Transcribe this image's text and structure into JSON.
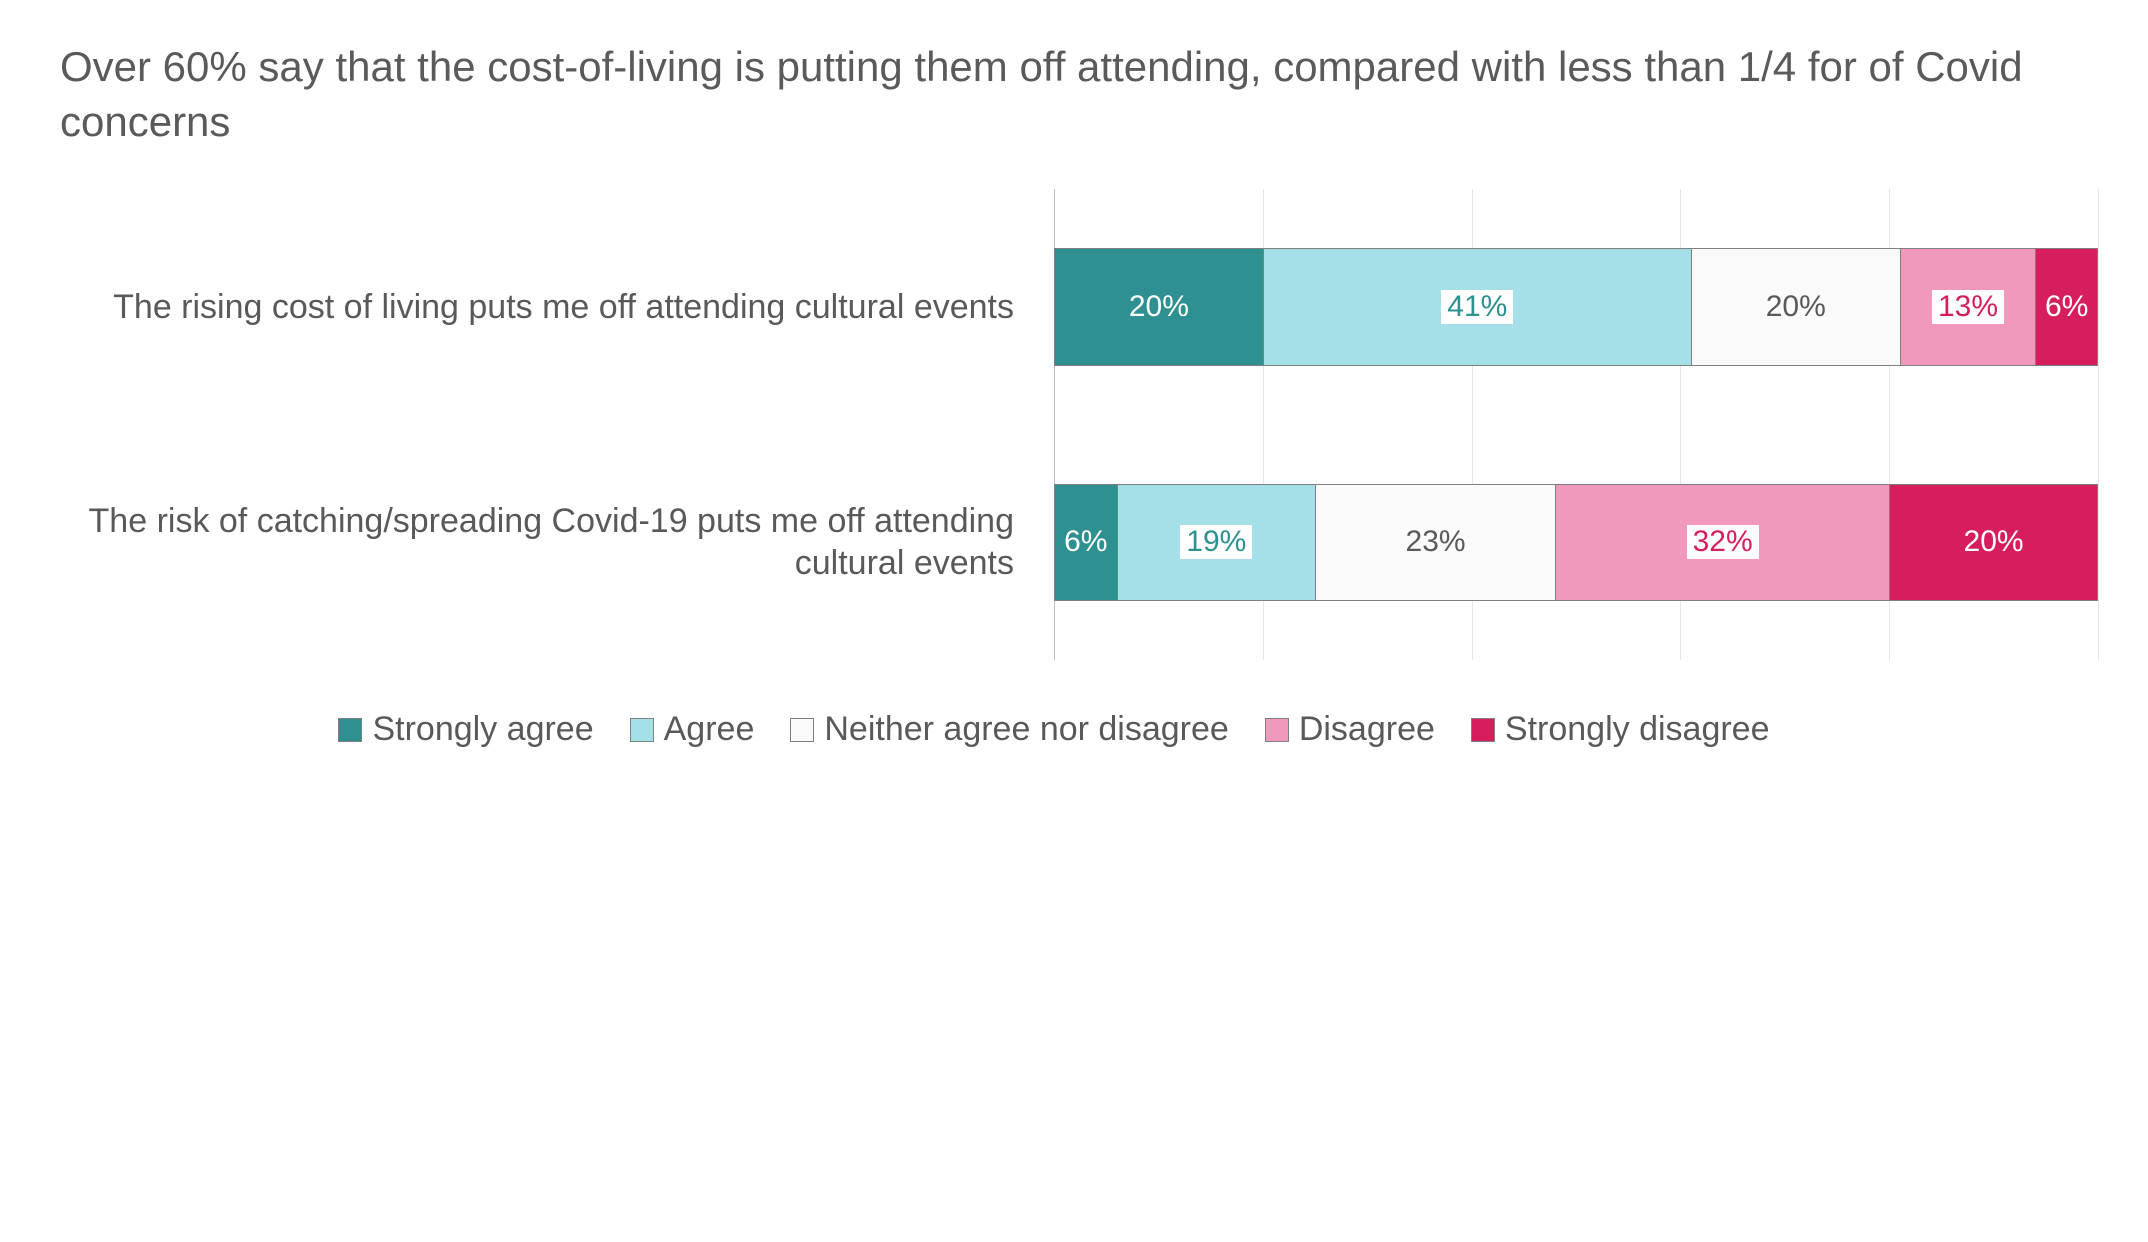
{
  "title": "Over 60% say that the cost-of-living is putting them off attending, compared with less than 1/4 for of Covid concerns",
  "title_color": "#5a5a5a",
  "title_fontsize": 42,
  "background_color": "#ffffff",
  "chart": {
    "type": "bar-stacked-horizontal",
    "xlim": [
      0,
      100
    ],
    "grid": {
      "step": 20,
      "color": "#e6e6e6",
      "axis_color": "#bfbfbf"
    },
    "label_color": "#595959",
    "label_fontsize": 34,
    "value_fontsize": 30,
    "bar_border_color": "#7f7f7f",
    "categories": [
      {
        "label": "The rising cost of living puts me off attending cultural events",
        "values": [
          20,
          41,
          20,
          13,
          6
        ]
      },
      {
        "label": "The risk of catching/spreading Covid-19 puts me off attending cultural events",
        "values": [
          6,
          19,
          23,
          32,
          20
        ]
      }
    ],
    "series": [
      {
        "name": "Strongly agree",
        "fill": "#2e9090",
        "text": "#ffffff",
        "boxed": false
      },
      {
        "name": "Agree",
        "fill": "#a5e0e8",
        "text": "#2e9090",
        "boxed": true
      },
      {
        "name": "Neither agree nor disagree",
        "fill": "#fafafa",
        "text": "#595959",
        "boxed": false
      },
      {
        "name": "Disagree",
        "fill": "#f099bd",
        "text": "#d61d5d",
        "boxed": true
      },
      {
        "name": "Strongly disagree",
        "fill": "#d61d5d",
        "text": "#ffffff",
        "boxed": false
      }
    ]
  },
  "legend_color": "#595959"
}
